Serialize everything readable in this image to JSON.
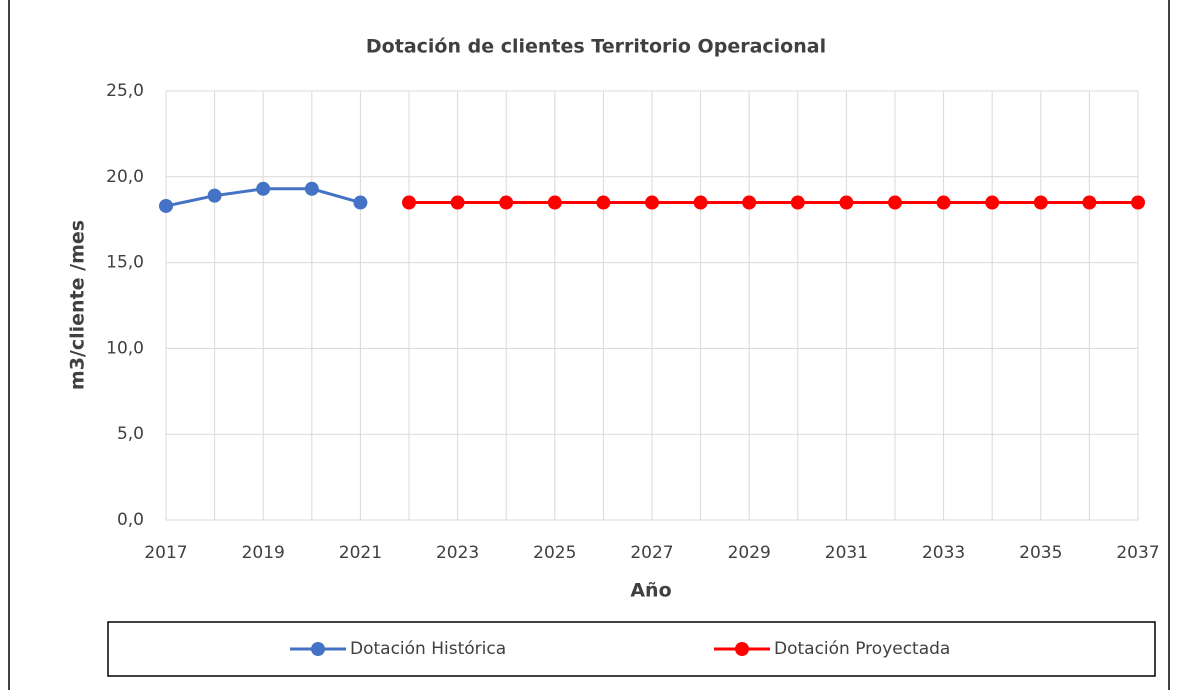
{
  "chart_data": {
    "type": "line",
    "title": "Dotación de clientes Territorio Operacional",
    "xlabel": "Año",
    "ylabel": "m3/cliente /mes",
    "xlim": [
      2017,
      2037
    ],
    "xticks": [
      2017,
      2019,
      2021,
      2023,
      2025,
      2027,
      2029,
      2031,
      2033,
      2035,
      2037
    ],
    "xminorticks": [
      2018,
      2020,
      2022,
      2024,
      2026,
      2028,
      2030,
      2032,
      2034,
      2036
    ],
    "ylim": [
      0,
      25
    ],
    "yticks": [
      {
        "value": 0,
        "label": "0,0"
      },
      {
        "value": 5,
        "label": "5,0"
      },
      {
        "value": 10,
        "label": "10,0"
      },
      {
        "value": 15,
        "label": "15,0"
      },
      {
        "value": 20,
        "label": "20,0"
      },
      {
        "value": 25,
        "label": "25,0"
      }
    ],
    "grid": true,
    "legend": "bottom",
    "series": [
      {
        "name": "Dotación Histórica",
        "color": "#4472c4",
        "x": [
          2017,
          2018,
          2019,
          2020,
          2021
        ],
        "values": [
          18.3,
          18.9,
          19.3,
          19.3,
          18.5
        ]
      },
      {
        "name": "Dotación Proyectada",
        "color": "#ff0000",
        "x": [
          2022,
          2023,
          2024,
          2025,
          2026,
          2027,
          2028,
          2029,
          2030,
          2031,
          2032,
          2033,
          2034,
          2035,
          2036,
          2037
        ],
        "values": [
          18.5,
          18.5,
          18.5,
          18.5,
          18.5,
          18.5,
          18.5,
          18.5,
          18.5,
          18.5,
          18.5,
          18.5,
          18.5,
          18.5,
          18.5,
          18.5
        ]
      }
    ]
  }
}
